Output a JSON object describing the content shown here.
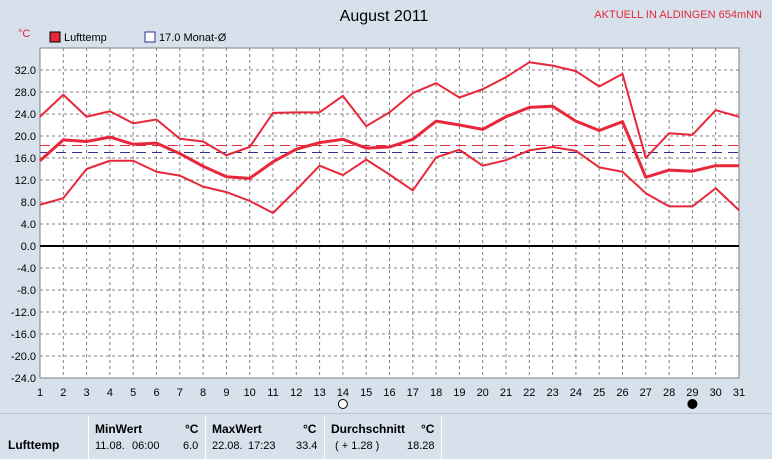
{
  "header": {
    "title": "August 2011",
    "station": "AKTUELL IN ALDINGEN 654mNN",
    "unit": "°C"
  },
  "legend": {
    "series_label": "Lufttemp",
    "mean_label": "17.0 Monat-Ø"
  },
  "colors": {
    "series": "#e8283a",
    "mean_line": "#303090",
    "grid": "#808080",
    "zero_line": "#000000"
  },
  "chart_data": {
    "type": "line",
    "title": "August 2011",
    "xlabel": "",
    "ylabel": "°C",
    "xlim": [
      1,
      31
    ],
    "ylim": [
      -24,
      36
    ],
    "yticks": [
      32,
      28,
      24,
      20,
      16,
      12,
      8,
      4,
      0,
      -4,
      -8,
      -12,
      -16,
      -20,
      -24
    ],
    "ytick_labels": [
      "32.0",
      "28.0",
      "24.0",
      "20.0",
      "16.0",
      "12.0",
      "8.0",
      "4.0",
      "0.0",
      "-4.0",
      "-8.0",
      "-12.0",
      "-16.0",
      "-20.0",
      "-24.0"
    ],
    "x": [
      1,
      2,
      3,
      4,
      5,
      6,
      7,
      8,
      9,
      10,
      11,
      12,
      13,
      14,
      15,
      16,
      17,
      18,
      19,
      20,
      21,
      22,
      23,
      24,
      25,
      26,
      27,
      28,
      29,
      30,
      31
    ],
    "series": [
      {
        "name": "Lufttemp",
        "role": "max",
        "values": [
          23.5,
          27.5,
          23.5,
          24.5,
          22.3,
          23.0,
          19.5,
          19.0,
          16.5,
          18.0,
          24.2,
          24.3,
          24.3,
          27.3,
          21.8,
          24.3,
          27.8,
          29.6,
          27.0,
          28.5,
          30.7,
          33.4,
          32.8,
          31.8,
          29.0,
          31.3,
          16.0,
          20.5,
          20.2,
          24.7,
          23.5
        ]
      },
      {
        "name": "Lufttemp",
        "role": "avg",
        "values": [
          15.5,
          19.3,
          19.0,
          19.8,
          18.5,
          18.7,
          16.8,
          14.5,
          12.6,
          12.3,
          15.3,
          17.6,
          18.8,
          19.4,
          17.8,
          18.0,
          19.4,
          22.7,
          22.0,
          21.2,
          23.5,
          25.2,
          25.4,
          22.7,
          21.0,
          22.6,
          12.5,
          13.8,
          13.6,
          14.6,
          14.6
        ]
      },
      {
        "name": "Lufttemp",
        "role": "min",
        "values": [
          7.5,
          8.7,
          14.0,
          15.5,
          15.5,
          13.5,
          12.8,
          10.8,
          9.8,
          8.2,
          6.0,
          10.2,
          14.6,
          12.9,
          15.7,
          13.0,
          10.1,
          16.1,
          17.5,
          14.6,
          15.6,
          17.4,
          18.0,
          17.3,
          14.3,
          13.5,
          9.6,
          7.2,
          7.2,
          10.5,
          6.5
        ]
      }
    ],
    "reference_lines": [
      {
        "name": "17.0 Monat-Ø",
        "value": 17.0,
        "color": "#303090",
        "style": "dashed"
      },
      {
        "name": "Lufttemp",
        "value": 18.28,
        "color": "#e8283a",
        "style": "dashed"
      }
    ],
    "markers": [
      {
        "x": 14,
        "symbol": "first-quarter-moon"
      },
      {
        "x": 29,
        "symbol": "new-moon"
      }
    ],
    "grid": true,
    "legend_position": "top-left"
  },
  "stats": {
    "row_label": "Lufttemp",
    "min": {
      "header": "MinWert",
      "unit": "°C",
      "date": "11.08.",
      "time": "06:00",
      "value": "6.0"
    },
    "max": {
      "header": "MaxWert",
      "unit": "°C",
      "date": "22.08.",
      "time": "17:23",
      "value": "33.4"
    },
    "avg": {
      "header": "Durchschnitt",
      "unit": "°C",
      "delta": "( + 1.28 )",
      "value": "18.28"
    }
  }
}
